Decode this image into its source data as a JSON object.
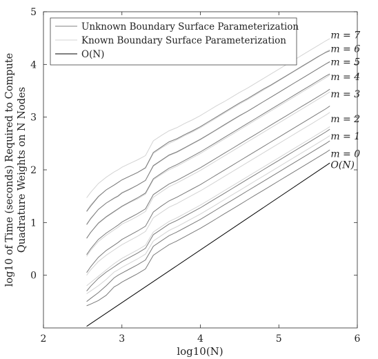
{
  "chart_data": {
    "type": "line",
    "title": "",
    "xlabel": "log10(N)",
    "ylabel_line1": "log10 of Time (seconds) Required to Compute",
    "ylabel_line2": "Quadrature Weights on N Nodes",
    "xlim": [
      2,
      6
    ],
    "ylim": [
      -1,
      5
    ],
    "xticks": [
      2,
      3,
      4,
      5,
      6
    ],
    "yticks": [
      0,
      1,
      2,
      3,
      4,
      5
    ],
    "grid": false,
    "legend": {
      "placement": "top-left",
      "entries": [
        {
          "label": "Unknown Boundary Surface Parameterization",
          "color": "#808080"
        },
        {
          "label": "Known Boundary Surface Parameterization",
          "color": "#d3d3d3"
        },
        {
          "label": "O(N)",
          "color": "#000000"
        }
      ]
    },
    "x": [
      2.55,
      2.6,
      2.7,
      2.8,
      2.9,
      2.95,
      3.0,
      3.1,
      3.2,
      3.3,
      3.4,
      3.5,
      3.6,
      3.7,
      3.8,
      3.9,
      4.0,
      4.1,
      4.2,
      4.3,
      4.4,
      4.5,
      4.6,
      4.7,
      4.8,
      4.9,
      5.0,
      5.1,
      5.2,
      5.3,
      5.4,
      5.5,
      5.6,
      5.65
    ],
    "series": [
      {
        "name": "m = 7",
        "group": "Unknown Boundary Surface Parameterization",
        "color": "#7a7a7a",
        "values": [
          1.21,
          1.31,
          1.49,
          1.62,
          1.71,
          1.76,
          1.81,
          1.88,
          1.95,
          2.04,
          2.33,
          2.43,
          2.53,
          2.59,
          2.67,
          2.74,
          2.82,
          2.91,
          3.0,
          3.09,
          3.18,
          3.27,
          3.35,
          3.44,
          3.53,
          3.61,
          3.7,
          3.79,
          3.88,
          3.97,
          4.06,
          4.15,
          4.23,
          4.26
        ]
      },
      {
        "name": "m = 7",
        "group": "Known Boundary Surface Parameterization",
        "color": "#d3d3d3",
        "values": [
          1.47,
          1.57,
          1.74,
          1.86,
          1.96,
          2.0,
          2.05,
          2.12,
          2.19,
          2.27,
          2.55,
          2.65,
          2.74,
          2.8,
          2.88,
          2.95,
          3.03,
          3.12,
          3.21,
          3.29,
          3.38,
          3.47,
          3.55,
          3.64,
          3.73,
          3.82,
          3.91,
          4.0,
          4.09,
          4.18,
          4.27,
          4.36,
          4.45,
          4.49
        ]
      },
      {
        "name": "m = 6",
        "group": "Unknown Boundary Surface Parameterization",
        "color": "#7a7a7a",
        "values": [
          0.96,
          1.07,
          1.25,
          1.37,
          1.46,
          1.5,
          1.56,
          1.63,
          1.71,
          1.8,
          2.08,
          2.18,
          2.28,
          2.34,
          2.42,
          2.5,
          2.58,
          2.67,
          2.76,
          2.85,
          2.94,
          3.03,
          3.11,
          3.2,
          3.29,
          3.38,
          3.47,
          3.56,
          3.65,
          3.74,
          3.83,
          3.92,
          4.01,
          4.05
        ]
      },
      {
        "name": "m = 6",
        "group": "Known Boundary Surface Parameterization",
        "color": "#d3d3d3",
        "values": [
          1.22,
          1.33,
          1.5,
          1.62,
          1.71,
          1.76,
          1.81,
          1.88,
          1.95,
          2.03,
          2.31,
          2.41,
          2.5,
          2.57,
          2.65,
          2.72,
          2.8,
          2.89,
          2.98,
          3.07,
          3.16,
          3.25,
          3.33,
          3.42,
          3.51,
          3.6,
          3.69,
          3.78,
          3.87,
          3.96,
          4.05,
          4.14,
          4.24,
          4.28
        ]
      },
      {
        "name": "m = 5",
        "group": "Unknown Boundary Surface Parameterization",
        "color": "#7a7a7a",
        "values": [
          0.7,
          0.81,
          0.99,
          1.11,
          1.21,
          1.26,
          1.31,
          1.39,
          1.47,
          1.56,
          1.83,
          1.93,
          2.03,
          2.1,
          2.18,
          2.26,
          2.34,
          2.43,
          2.52,
          2.61,
          2.7,
          2.79,
          2.88,
          2.97,
          3.06,
          3.15,
          3.24,
          3.33,
          3.42,
          3.51,
          3.6,
          3.69,
          3.78,
          3.82
        ]
      },
      {
        "name": "m = 5",
        "group": "Known Boundary Surface Parameterization",
        "color": "#d3d3d3",
        "values": [
          0.97,
          1.08,
          1.25,
          1.37,
          1.47,
          1.51,
          1.57,
          1.64,
          1.71,
          1.8,
          2.07,
          2.17,
          2.27,
          2.33,
          2.41,
          2.49,
          2.57,
          2.66,
          2.75,
          2.84,
          2.93,
          3.02,
          3.11,
          3.2,
          3.29,
          3.38,
          3.47,
          3.56,
          3.65,
          3.74,
          3.83,
          3.92,
          4.01,
          4.06
        ]
      },
      {
        "name": "m = 4",
        "group": "Unknown Boundary Surface Parameterization",
        "color": "#7a7a7a",
        "values": [
          0.39,
          0.5,
          0.68,
          0.8,
          0.9,
          0.95,
          1.01,
          1.09,
          1.17,
          1.26,
          1.53,
          1.63,
          1.73,
          1.8,
          1.88,
          1.96,
          2.04,
          2.13,
          2.22,
          2.31,
          2.4,
          2.49,
          2.58,
          2.67,
          2.76,
          2.85,
          2.94,
          3.03,
          3.12,
          3.21,
          3.3,
          3.39,
          3.48,
          3.53
        ]
      },
      {
        "name": "m = 4",
        "group": "Known Boundary Surface Parameterization",
        "color": "#d3d3d3",
        "values": [
          0.7,
          0.81,
          0.98,
          1.1,
          1.2,
          1.25,
          1.3,
          1.38,
          1.45,
          1.54,
          1.81,
          1.91,
          2.0,
          2.07,
          2.15,
          2.23,
          2.31,
          2.4,
          2.49,
          2.58,
          2.67,
          2.76,
          2.85,
          2.94,
          3.03,
          3.12,
          3.21,
          3.3,
          3.39,
          3.48,
          3.57,
          3.66,
          3.75,
          3.8
        ]
      },
      {
        "name": "m = 3",
        "group": "Unknown Boundary Surface Parameterization",
        "color": "#7a7a7a",
        "values": [
          0.05,
          0.16,
          0.34,
          0.47,
          0.57,
          0.62,
          0.68,
          0.76,
          0.84,
          0.93,
          1.2,
          1.31,
          1.41,
          1.48,
          1.56,
          1.64,
          1.72,
          1.81,
          1.9,
          1.99,
          2.08,
          2.17,
          2.26,
          2.35,
          2.44,
          2.53,
          2.62,
          2.71,
          2.8,
          2.89,
          2.98,
          3.07,
          3.16,
          3.21
        ]
      },
      {
        "name": "m = 3",
        "group": "Known Boundary Surface Parameterization",
        "color": "#d3d3d3",
        "values": [
          0.36,
          0.47,
          0.64,
          0.76,
          0.86,
          0.91,
          0.97,
          1.04,
          1.12,
          1.21,
          1.48,
          1.58,
          1.68,
          1.75,
          1.83,
          1.91,
          1.99,
          2.08,
          2.17,
          2.26,
          2.35,
          2.44,
          2.53,
          2.62,
          2.71,
          2.8,
          2.89,
          2.98,
          3.07,
          3.16,
          3.25,
          3.34,
          3.43,
          3.48
        ]
      },
      {
        "name": "m = 2",
        "group": "Unknown Boundary Surface Parameterization",
        "color": "#7a7a7a",
        "values": [
          -0.3,
          -0.21,
          -0.06,
          0.06,
          0.16,
          0.21,
          0.26,
          0.34,
          0.42,
          0.51,
          0.77,
          0.87,
          0.97,
          1.04,
          1.12,
          1.2,
          1.28,
          1.37,
          1.46,
          1.55,
          1.64,
          1.73,
          1.82,
          1.91,
          2.0,
          2.09,
          2.18,
          2.27,
          2.36,
          2.45,
          2.54,
          2.63,
          2.72,
          2.77
        ]
      },
      {
        "name": "m = 2",
        "group": "Known Boundary Surface Parameterization",
        "color": "#d3d3d3",
        "values": [
          0.0,
          0.1,
          0.26,
          0.38,
          0.48,
          0.53,
          0.58,
          0.66,
          0.74,
          0.83,
          1.09,
          1.19,
          1.29,
          1.36,
          1.44,
          1.52,
          1.6,
          1.69,
          1.78,
          1.87,
          1.96,
          2.05,
          2.14,
          2.23,
          2.32,
          2.41,
          2.5,
          2.59,
          2.68,
          2.77,
          2.86,
          2.95,
          3.04,
          3.09
        ]
      },
      {
        "name": "m = 1",
        "group": "Unknown Boundary Surface Parameterization",
        "color": "#7a7a7a",
        "values": [
          -0.5,
          -0.44,
          -0.33,
          -0.2,
          -0.05,
          0.0,
          0.04,
          0.12,
          0.2,
          0.29,
          0.55,
          0.65,
          0.75,
          0.82,
          0.9,
          0.98,
          1.06,
          1.15,
          1.24,
          1.33,
          1.42,
          1.51,
          1.6,
          1.69,
          1.78,
          1.87,
          1.96,
          2.05,
          2.14,
          2.23,
          2.32,
          2.41,
          2.5,
          2.55
        ]
      },
      {
        "name": "m = 1",
        "group": "Known Boundary Surface Parameterization",
        "color": "#d3d3d3",
        "values": [
          -0.2,
          -0.14,
          -0.02,
          0.1,
          0.22,
          0.27,
          0.32,
          0.4,
          0.48,
          0.57,
          0.82,
          0.92,
          1.02,
          1.09,
          1.17,
          1.25,
          1.33,
          1.42,
          1.51,
          1.6,
          1.69,
          1.78,
          1.87,
          1.96,
          2.05,
          2.14,
          2.23,
          2.32,
          2.41,
          2.5,
          2.59,
          2.68,
          2.77,
          2.82
        ]
      },
      {
        "name": "m = 0",
        "group": "Unknown Boundary Surface Parameterization",
        "color": "#7a7a7a",
        "values": [
          -0.58,
          -0.55,
          -0.48,
          -0.38,
          -0.22,
          -0.18,
          -0.13,
          -0.05,
          0.03,
          0.12,
          0.38,
          0.48,
          0.58,
          0.65,
          0.73,
          0.81,
          0.89,
          0.98,
          1.07,
          1.16,
          1.25,
          1.34,
          1.43,
          1.52,
          1.61,
          1.7,
          1.79,
          1.88,
          1.97,
          2.06,
          2.15,
          2.24,
          2.33,
          2.38
        ]
      },
      {
        "name": "m = 0",
        "group": "Known Boundary Surface Parameterization",
        "color": "#d3d3d3",
        "values": [
          -0.35,
          -0.3,
          -0.2,
          -0.08,
          0.06,
          0.1,
          0.15,
          0.23,
          0.31,
          0.4,
          0.65,
          0.75,
          0.85,
          0.92,
          1.0,
          1.08,
          1.16,
          1.25,
          1.34,
          1.43,
          1.52,
          1.61,
          1.7,
          1.79,
          1.88,
          1.97,
          2.06,
          2.15,
          2.24,
          2.33,
          2.42,
          2.51,
          2.6,
          2.65
        ]
      }
    ],
    "reference": {
      "name": "O(N)",
      "color": "#000000",
      "x": [
        2.55,
        5.65
      ],
      "values": [
        -0.97,
        2.13
      ]
    },
    "annotations": [
      {
        "text": "m = 7",
        "x": 5.66,
        "y": 4.56
      },
      {
        "text": "m = 6",
        "x": 5.66,
        "y": 4.3
      },
      {
        "text": "m = 5",
        "x": 5.66,
        "y": 4.05
      },
      {
        "text": "m = 4",
        "x": 5.66,
        "y": 3.77
      },
      {
        "text": "m = 3",
        "x": 5.66,
        "y": 3.44
      },
      {
        "text": "m = 2",
        "x": 5.66,
        "y": 2.97
      },
      {
        "text": "m = 1",
        "x": 5.66,
        "y": 2.64
      },
      {
        "text": "m = 0",
        "x": 5.66,
        "y": 2.31
      },
      {
        "text": "O(N)",
        "x": 5.66,
        "y": 2.1
      }
    ]
  }
}
